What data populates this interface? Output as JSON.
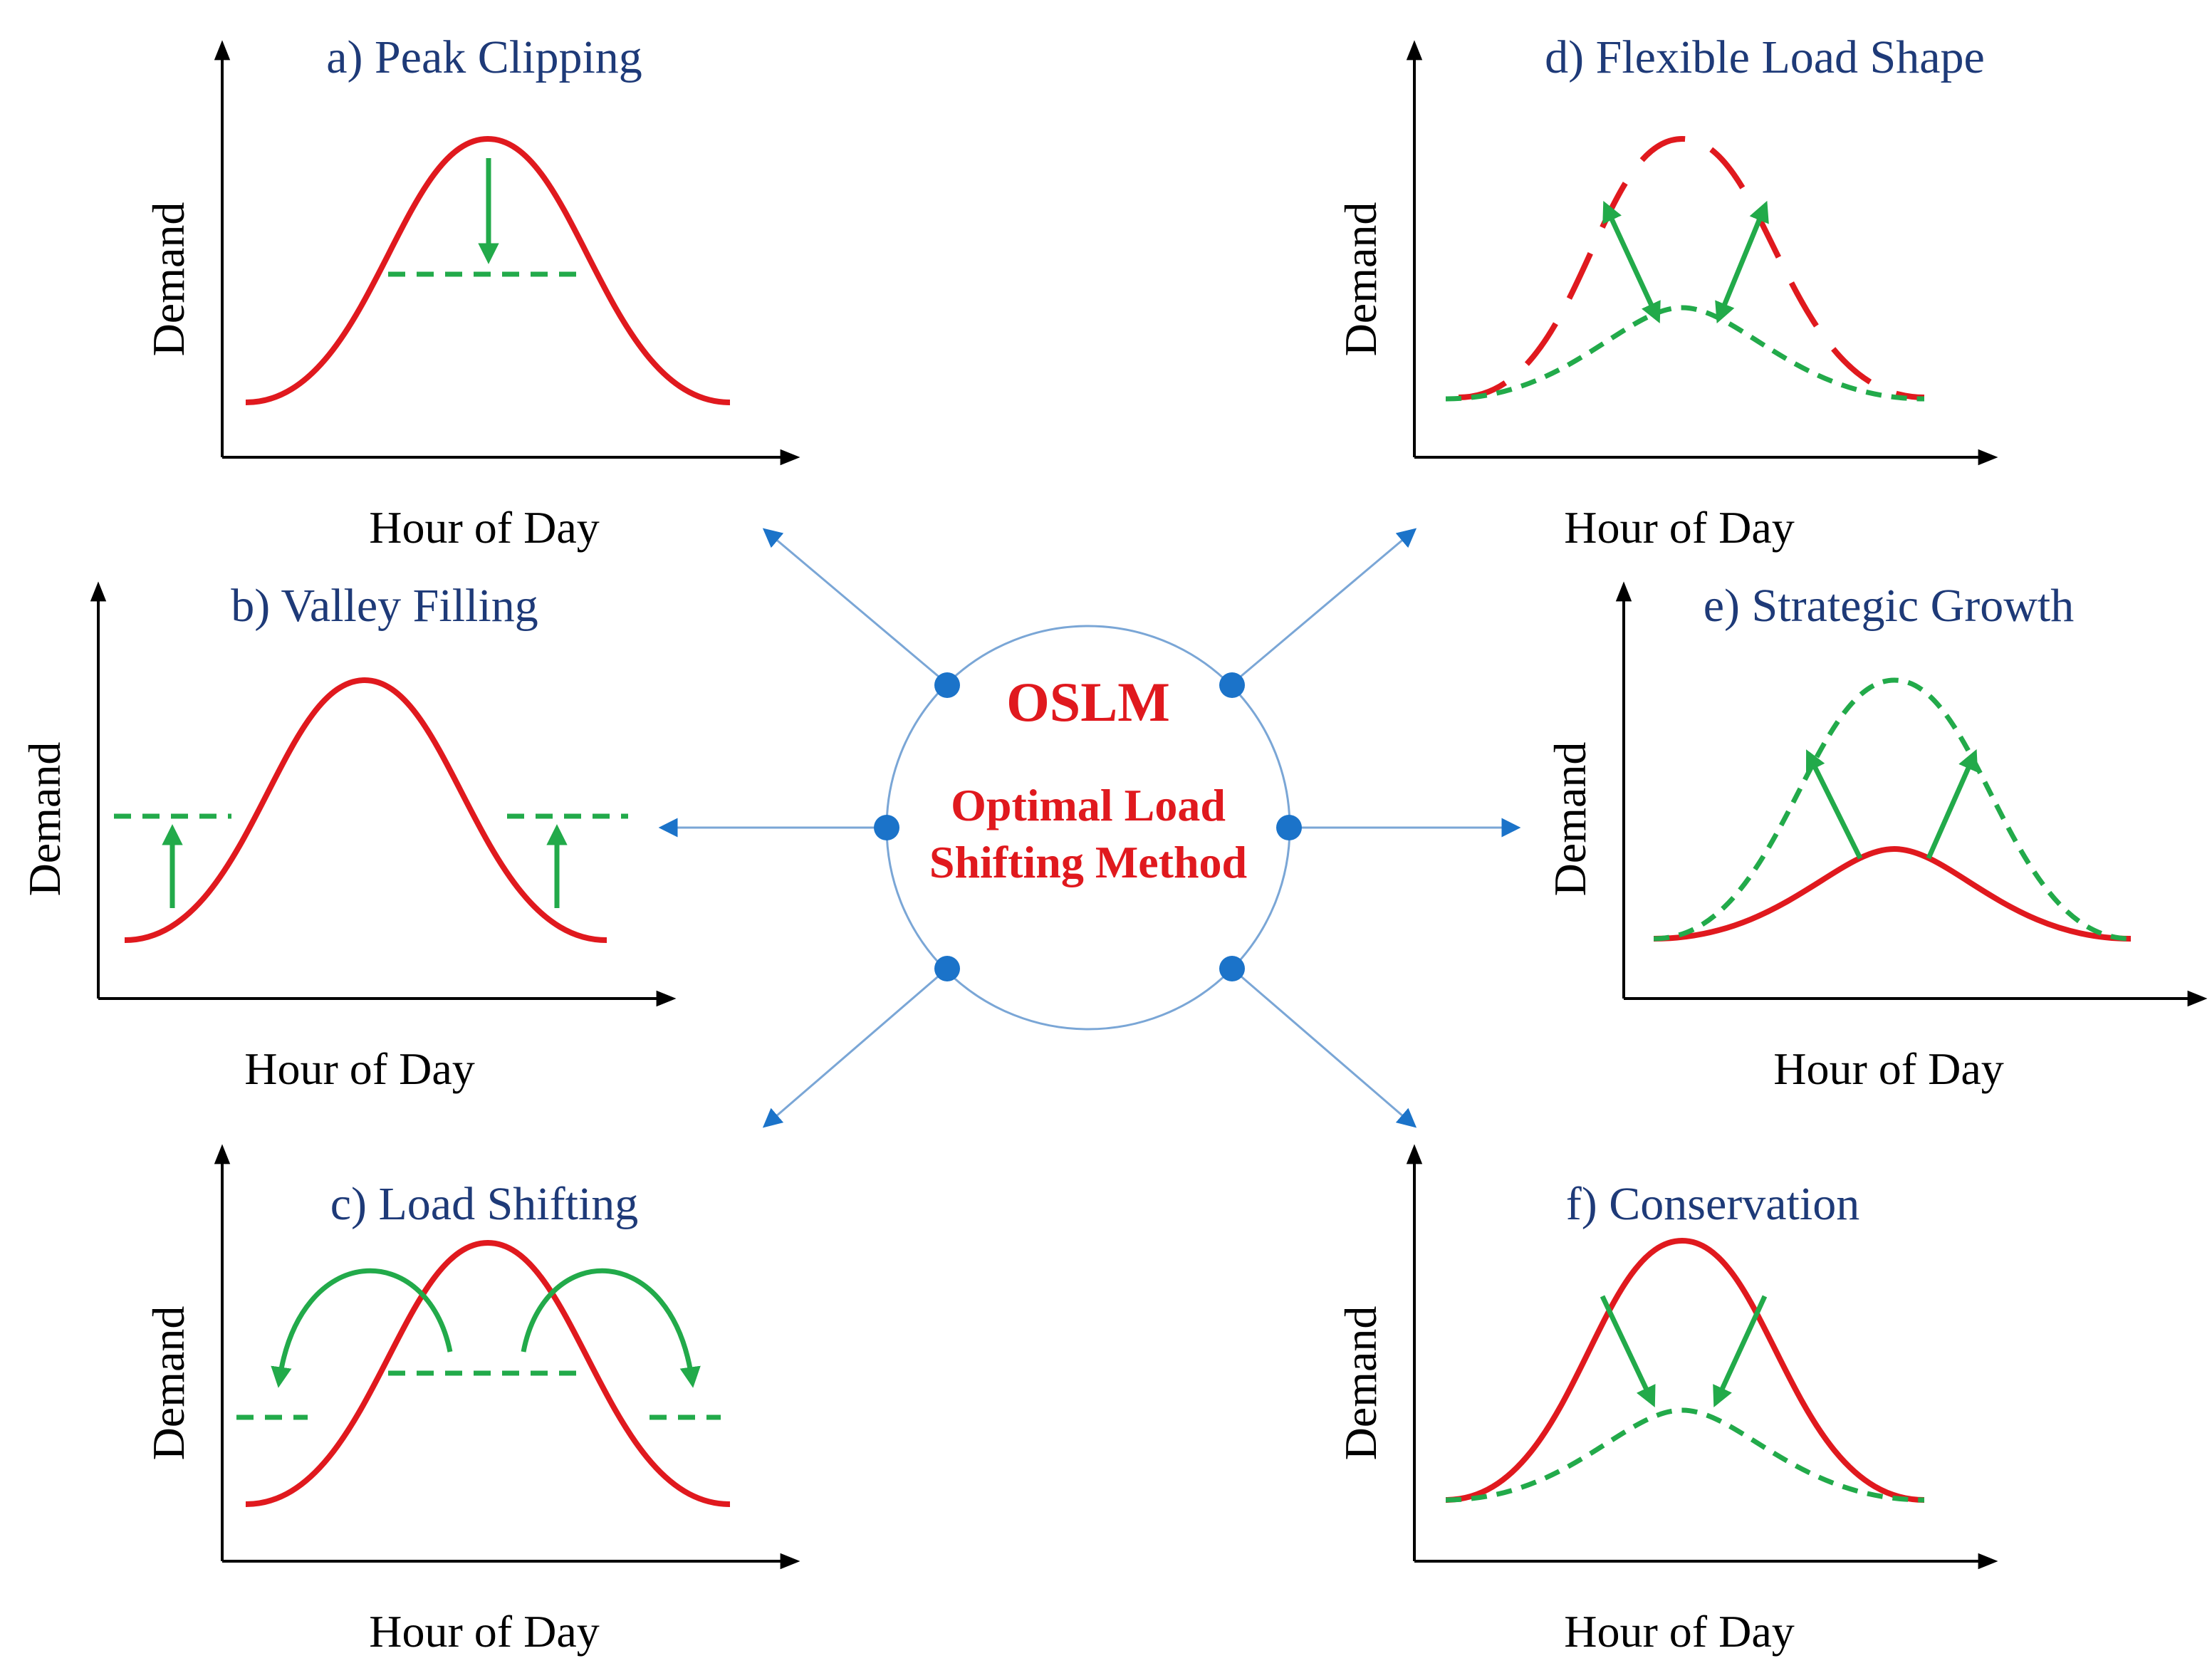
{
  "colors": {
    "load": "#e0191e",
    "modified": "#22aa4a",
    "arrow": "#22aa4a",
    "title": "#1e3a78",
    "connector": "#7aa6d6",
    "node": "#1b73c9",
    "center_text": "#e0191e",
    "axis": "#000000"
  },
  "center": {
    "acronym": "OSLM",
    "line1": "Optimal Load",
    "line2": "Shifting Method"
  },
  "panels": [
    {
      "id": "a",
      "title": "a) Peak Clipping",
      "xlabel": "Hour of Day",
      "ylabel": "Demand"
    },
    {
      "id": "b",
      "title": "b) Valley Filling",
      "xlabel": "Hour of Day",
      "ylabel": "Demand"
    },
    {
      "id": "c",
      "title": "c) Load Shifting",
      "xlabel": "Hour of Day",
      "ylabel": "Demand"
    },
    {
      "id": "d",
      "title": "d) Flexible Load Shape",
      "xlabel": "Hour of Day",
      "ylabel": "Demand"
    },
    {
      "id": "e",
      "title": "e) Strategic Growth",
      "xlabel": "Hour of Day",
      "ylabel": "Demand"
    },
    {
      "id": "f",
      "title": "f) Conservation",
      "xlabel": "Hour of Day",
      "ylabel": "Demand"
    }
  ]
}
